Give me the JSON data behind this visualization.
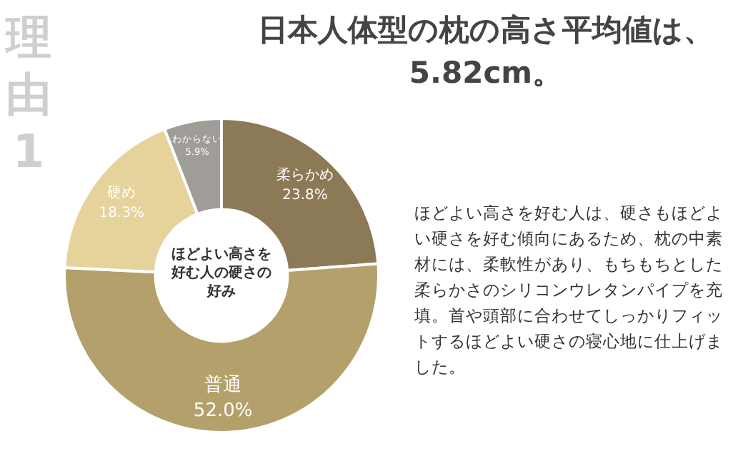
{
  "chart_data": {
    "type": "donut",
    "title": "日本人体型の枕の高さ平均値は、5.82cm。",
    "categories": [
      "柔らかめ",
      "普通",
      "硬め",
      "わからない"
    ],
    "values": [
      23.8,
      52.0,
      18.3,
      5.9
    ],
    "value_labels": [
      "23.8%",
      "52.0%",
      "18.3%",
      "5.9%"
    ],
    "colors": [
      "#8c7955",
      "#b3a06b",
      "#e6d39b",
      "#a09d98"
    ],
    "legend": false,
    "annotations": [
      "理由1",
      "ほどよい高さを好む人の硬さの好み",
      "ほどよい高さを好む人は、硬さもほどよい硬さを好む傾向にあるため、枕の中素材には、柔軟性があり、もちもちとした柔らかさのシリコンウレタンパイプを充填。首や頭部に合わせてしっかりフィットするほどよい硬さの寝心地に仕上げました。"
    ]
  }
}
